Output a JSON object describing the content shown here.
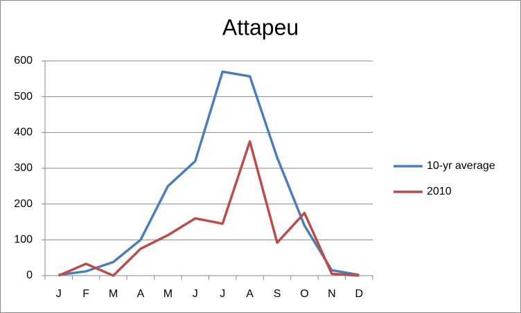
{
  "chart_data": {
    "type": "line",
    "title": "Attapeu",
    "categories": [
      "J",
      "F",
      "M",
      "A",
      "M",
      "J",
      "J",
      "A",
      "S",
      "O",
      "N",
      "D"
    ],
    "series": [
      {
        "name": "10-yr average",
        "color": "#4a7ebb",
        "values": [
          2,
          12,
          38,
          100,
          250,
          320,
          570,
          557,
          330,
          140,
          15,
          2
        ]
      },
      {
        "name": "2010",
        "color": "#be4b48",
        "values": [
          0,
          33,
          0,
          75,
          113,
          160,
          145,
          375,
          92,
          175,
          5,
          0
        ]
      }
    ],
    "ylim": [
      0,
      600
    ],
    "yticks": [
      0,
      100,
      200,
      300,
      400,
      500,
      600
    ],
    "grid": true,
    "legend": "right"
  }
}
